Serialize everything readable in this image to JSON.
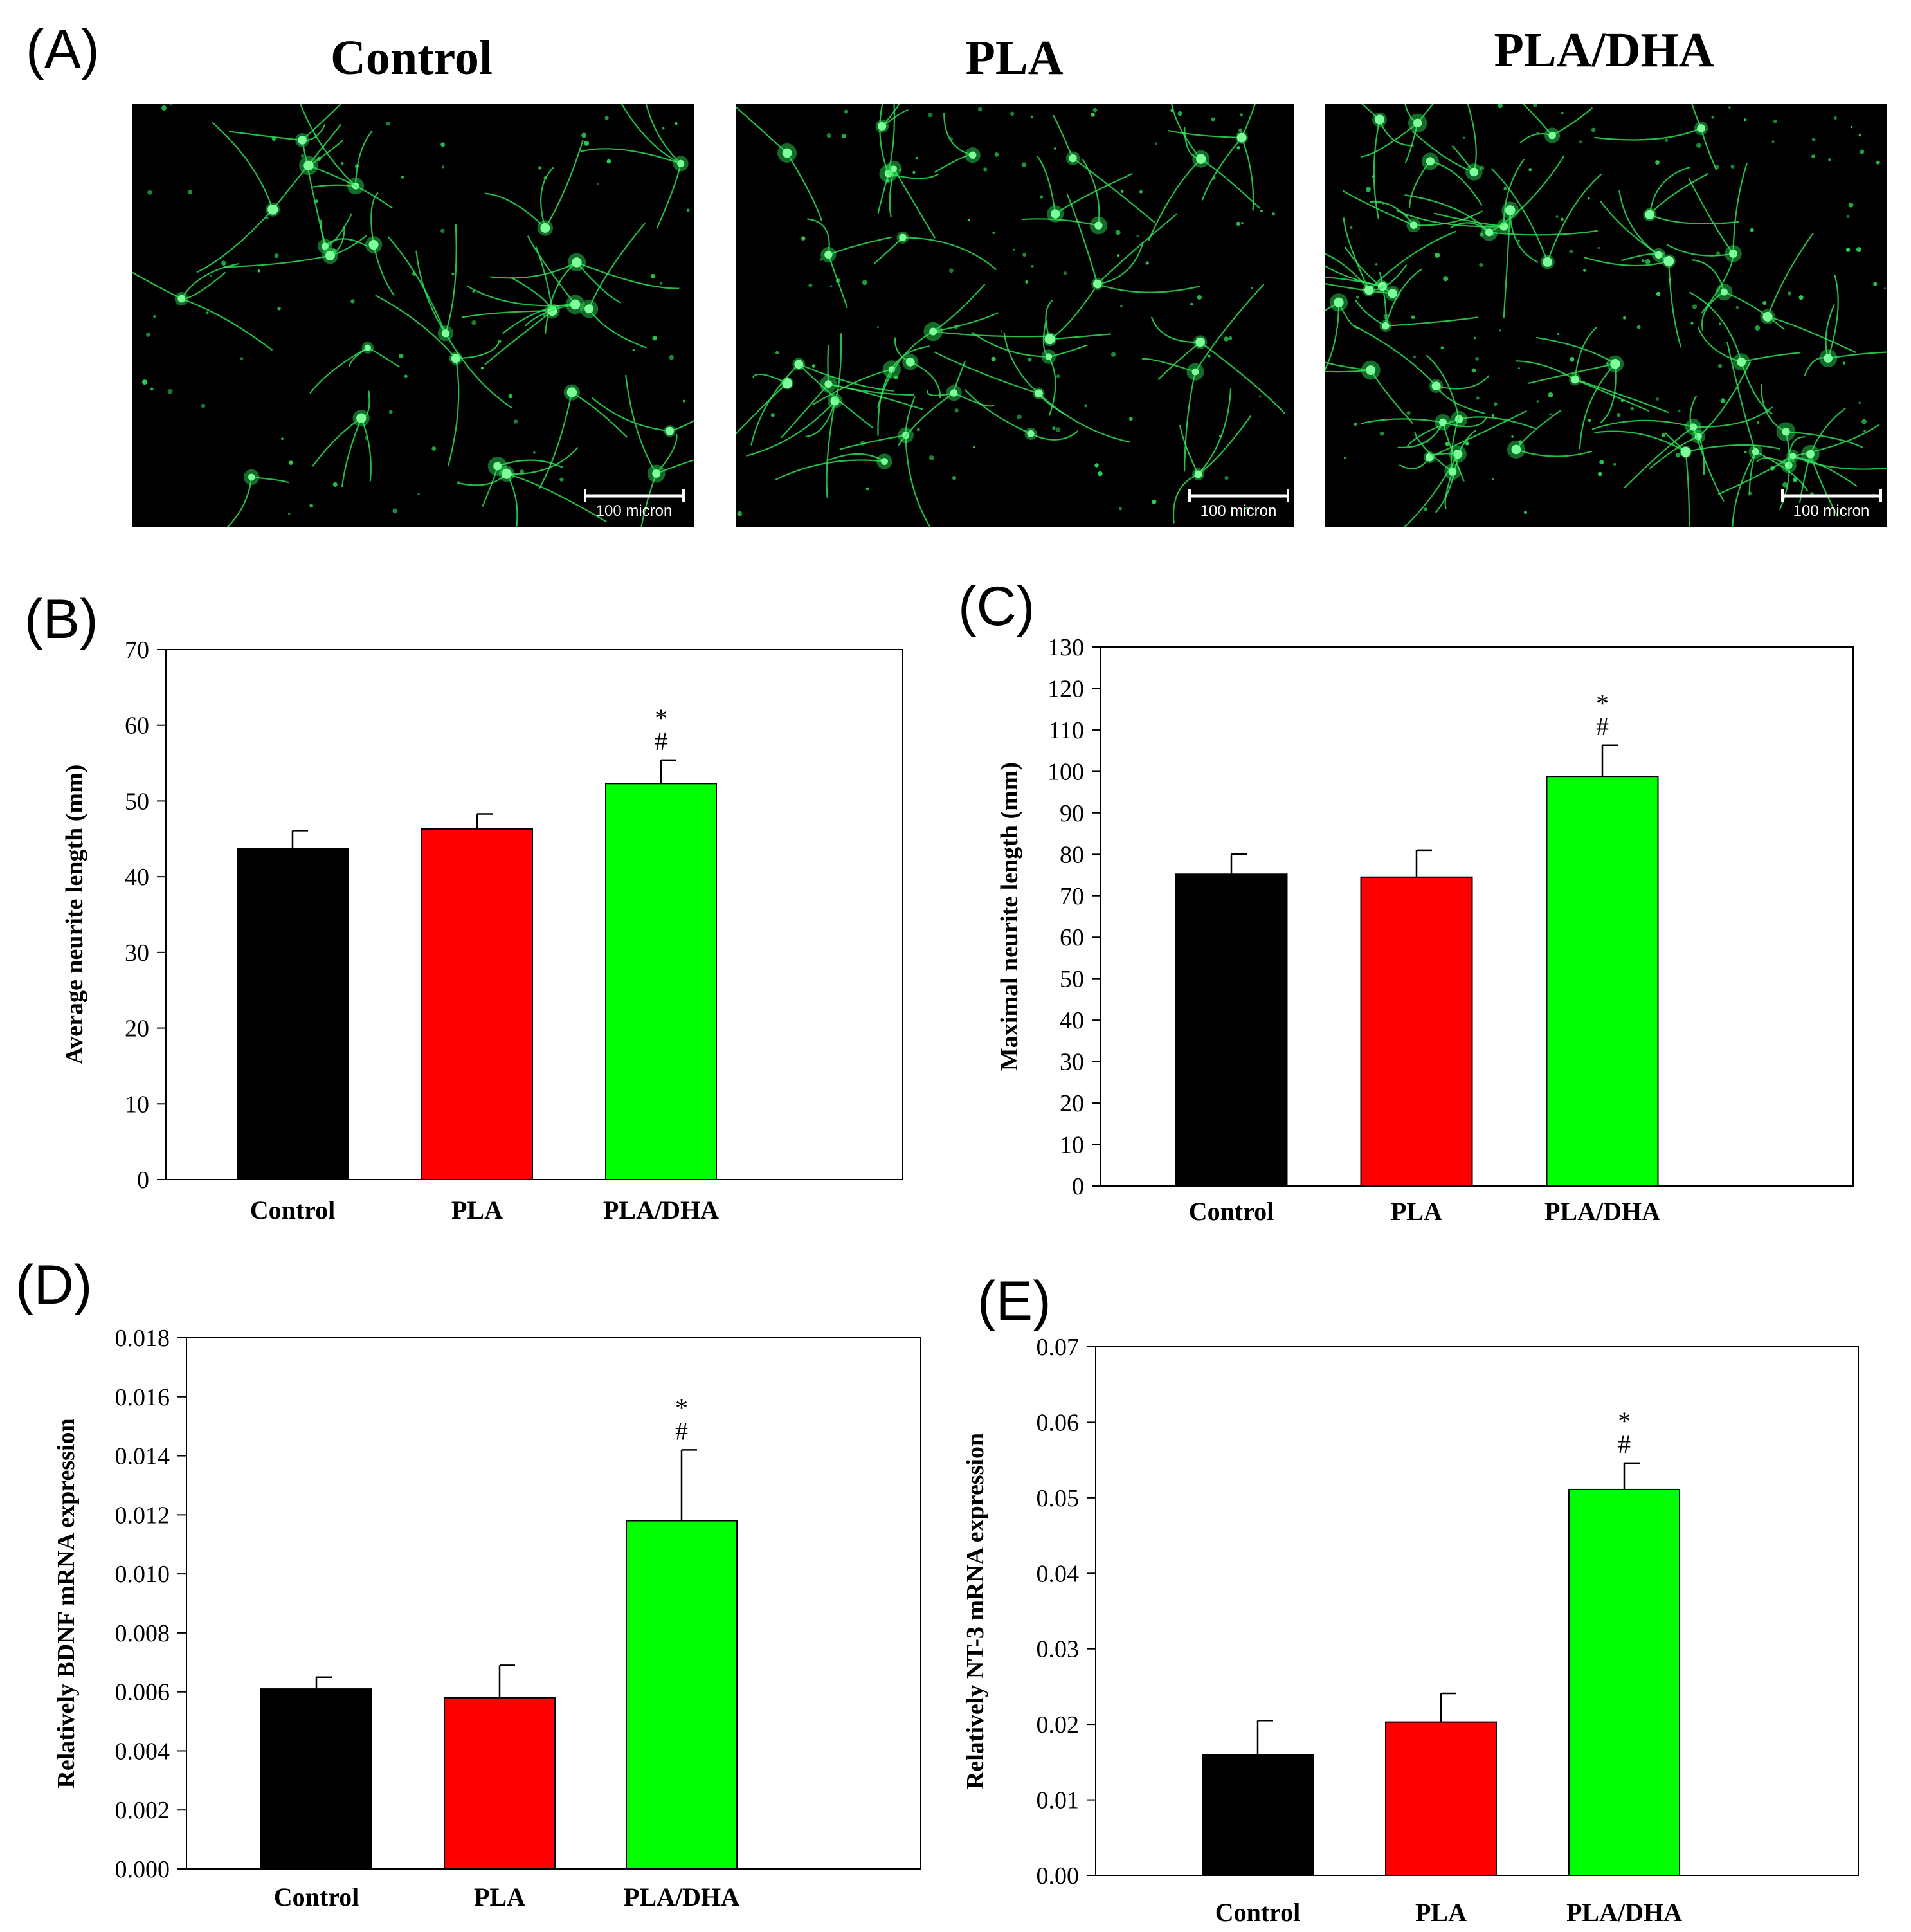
{
  "panel_a": {
    "letter": "(A)",
    "images": [
      {
        "title": "Control",
        "scale_bar_label": "100 micron"
      },
      {
        "title": "PLA",
        "scale_bar_label": "100 micron"
      },
      {
        "title": "PLA/DHA",
        "scale_bar_label": "100 micron"
      }
    ]
  },
  "colors": {
    "Control": "#000000",
    "PLA": "#ff0000",
    "PLA/DHA": "#00ff00",
    "fluorescence": "#2fe85a"
  },
  "chart_data": [
    {
      "panel": "(B)",
      "type": "bar",
      "categories": [
        "Control",
        "PLA",
        "PLA/DHA"
      ],
      "values": [
        43.7,
        46.3,
        52.3
      ],
      "errors": [
        2.4,
        2.0,
        3.1
      ],
      "annotations": [
        "",
        "",
        "*\n#"
      ],
      "title": "",
      "xlabel": "",
      "ylabel": "Average neurite length (mm)",
      "ylim": [
        0,
        70
      ],
      "yticks": [
        "0",
        "10",
        "20",
        "30",
        "40",
        "50",
        "60",
        "70"
      ],
      "grid": false
    },
    {
      "panel": "(C)",
      "type": "bar",
      "categories": [
        "Control",
        "PLA",
        "PLA/DHA"
      ],
      "values": [
        75.2,
        74.5,
        98.8
      ],
      "errors": [
        4.8,
        6.5,
        7.5
      ],
      "annotations": [
        "",
        "",
        "*\n#"
      ],
      "title": "",
      "xlabel": "",
      "ylabel": "Maximal neurite length (mm)",
      "ylim": [
        0,
        130
      ],
      "yticks": [
        "0",
        "10",
        "20",
        "30",
        "40",
        "50",
        "60",
        "70",
        "80",
        "90",
        "100",
        "110",
        "120",
        "130"
      ],
      "grid": false
    },
    {
      "panel": "(D)",
      "type": "bar",
      "categories": [
        "Control",
        "PLA",
        "PLA/DHA"
      ],
      "values": [
        0.0061,
        0.0058,
        0.0118
      ],
      "errors": [
        0.0004,
        0.0011,
        0.0024
      ],
      "annotations": [
        "",
        "",
        "*\n#"
      ],
      "title": "",
      "xlabel": "",
      "ylabel": "Relatively BDNF mRNA expression",
      "ylim": [
        0,
        0.018
      ],
      "yticks": [
        "0.000",
        "0.002",
        "0.004",
        "0.006",
        "0.008",
        "0.010",
        "0.012",
        "0.014",
        "0.016",
        "0.018"
      ],
      "grid": false
    },
    {
      "panel": "(E)",
      "type": "bar",
      "categories": [
        "Control",
        "PLA",
        "PLA/DHA"
      ],
      "values": [
        0.016,
        0.0203,
        0.0511
      ],
      "errors": [
        0.0045,
        0.0038,
        0.0035
      ],
      "annotations": [
        "",
        "",
        "*\n#"
      ],
      "title": "",
      "xlabel": "",
      "ylabel": "Relatively NT-3 mRNA expression",
      "ylim": [
        0,
        0.07
      ],
      "yticks": [
        "0.00",
        "0.01",
        "0.02",
        "0.03",
        "0.04",
        "0.05",
        "0.06",
        "0.07"
      ],
      "grid": false
    }
  ]
}
